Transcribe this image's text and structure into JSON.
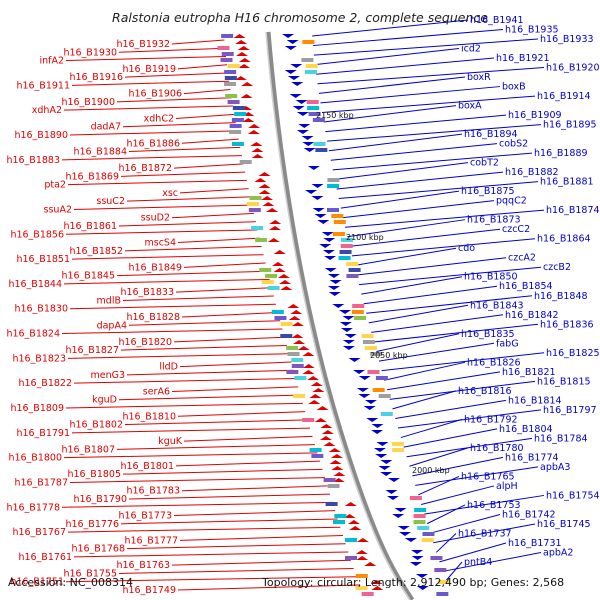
{
  "title": "Ralstonia eutropha H16 chromosome 2, complete sequence",
  "footer": {
    "accession": "Accession: NC_008314",
    "stats": "Topology: circular; Length: 2,912,490 bp; Genes: 2,568"
  },
  "colors": {
    "forward": "#e00000",
    "reverse": "#0000cc",
    "backbone": "#8a8a8a",
    "background": "#ffffff"
  },
  "scale_marks": [
    "2150 kbp",
    "2100 kbp",
    "2050 kbp",
    "2000 kbp"
  ],
  "left_labels": [
    "h16_B1932",
    "h16_B1930",
    "infA2",
    "h16_B1919",
    "h16_B1916",
    "h16_B1911",
    "h16_B1906",
    "h16_B1900",
    "xdhA2",
    "xdhC2",
    "dadA7",
    "h16_B1890",
    "h16_B1886",
    "h16_B1884",
    "h16_B1883",
    "h16_B1872",
    "h16_B1869",
    "pta2",
    "xsc",
    "ssuC2",
    "ssuA2",
    "ssuD2",
    "h16_B1861",
    "h16_B1856",
    "mscS4",
    "h16_B1852",
    "h16_B1851",
    "h16_B1849",
    "h16_B1845",
    "h16_B1844",
    "h16_B1833",
    "mdlB",
    "h16_B1830",
    "h16_B1828",
    "dapA4",
    "h16_B1824",
    "h16_B1820",
    "h16_B1827",
    "h16_B1823",
    "lldD",
    "menG3",
    "h16_B1822",
    "serA6",
    "kguD",
    "h16_B1809",
    "h16_B1810",
    "h16_B1802",
    "h16_B1791",
    "kguK",
    "h16_B1807",
    "h16_B1800",
    "h16_B1801",
    "h16_B1805",
    "h16_B1787",
    "h16_B1783",
    "h16_B1790",
    "h16_B1778",
    "h16_B1773",
    "h16_B1776",
    "h16_B1767",
    "h16_B1777",
    "h16_B1768",
    "h16_B1761",
    "h16_B1763",
    "h16_B1755",
    "h16_B1751",
    "h16_B1749"
  ],
  "right_labels": [
    "h16_B1941",
    "h16_B1935",
    "h16_B1933",
    "icd2",
    "h16_B1921",
    "h16_B1920",
    "boxR",
    "boxB",
    "h16_B1914",
    "boxA",
    "h16_B1909",
    "h16_B1895",
    "h16_B1894",
    "cobS2",
    "h16_B1889",
    "cobT2",
    "h16_B1882",
    "h16_B1881",
    "h16_B1875",
    "pqqC2",
    "h16_B1874",
    "h16_B1873",
    "czcC2",
    "h16_B1864",
    "cdo",
    "czcA2",
    "czcB2",
    "h16_B1850",
    "h16_B1854",
    "h16_B1848",
    "h16_B1843",
    "h16_B1842",
    "h16_B1836",
    "h16_B1835",
    "fabG",
    "h16_B1825",
    "h16_B1826",
    "h16_B1821",
    "h16_B1815",
    "h16_B1816",
    "h16_B1814",
    "h16_B1797",
    "h16_B1792",
    "h16_B1804",
    "h16_B1784",
    "h16_B1780",
    "h16_B1774",
    "apbA3",
    "h16_B1765",
    "alpH",
    "h16_B1754",
    "h16_B1753",
    "h16_B1742",
    "h16_B1745",
    "h16_B1737",
    "h16_B1731",
    "apbA2",
    "pntB4"
  ]
}
